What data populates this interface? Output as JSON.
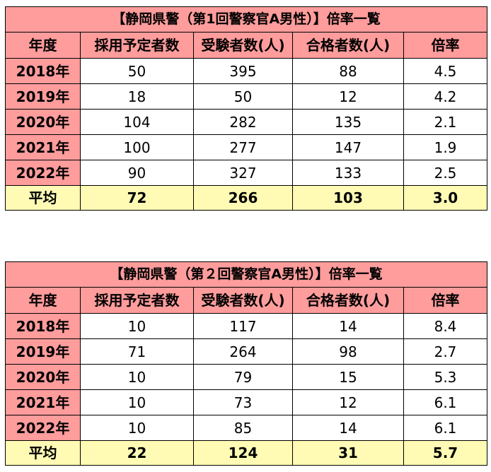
{
  "tables": [
    {
      "title": "【静岡県警（第1回警察官A男性）】倍率一覧",
      "headers": [
        "年度",
        "採用予定者数",
        "受験者数(人)",
        "合格者数(人)",
        "倍率"
      ],
      "rows": [
        [
          "2018年",
          "50",
          "395",
          "88",
          "4.5"
        ],
        [
          "2019年",
          "18",
          "50",
          "12",
          "4.2"
        ],
        [
          "2020年",
          "104",
          "282",
          "135",
          "2.1"
        ],
        [
          "2021年",
          "100",
          "277",
          "147",
          "1.9"
        ],
        [
          "2022年",
          "90",
          "327",
          "133",
          "2.5"
        ]
      ],
      "average": [
        "平均",
        "72",
        "266",
        "103",
        "3.0"
      ]
    },
    {
      "title": "【静岡県警（第２回警察官A男性）】倍率一覧",
      "headers": [
        "年度",
        "採用予定者数",
        "受験者数(人)",
        "合格者数(人)",
        "倍率"
      ],
      "rows": [
        [
          "2018年",
          "10",
          "117",
          "14",
          "8.4"
        ],
        [
          "2019年",
          "71",
          "264",
          "98",
          "2.7"
        ],
        [
          "2020年",
          "10",
          "79",
          "15",
          "5.3"
        ],
        [
          "2021年",
          "10",
          "73",
          "12",
          "6.1"
        ],
        [
          "2022年",
          "10",
          "85",
          "14",
          "6.1"
        ]
      ],
      "average": [
        "平均",
        "22",
        "124",
        "31",
        "5.7"
      ]
    }
  ],
  "colors": {
    "header_fill": "#ff9c9c",
    "average_fill": "#fffbb5",
    "cell_fill": "#ffffff",
    "border": "#000000"
  }
}
